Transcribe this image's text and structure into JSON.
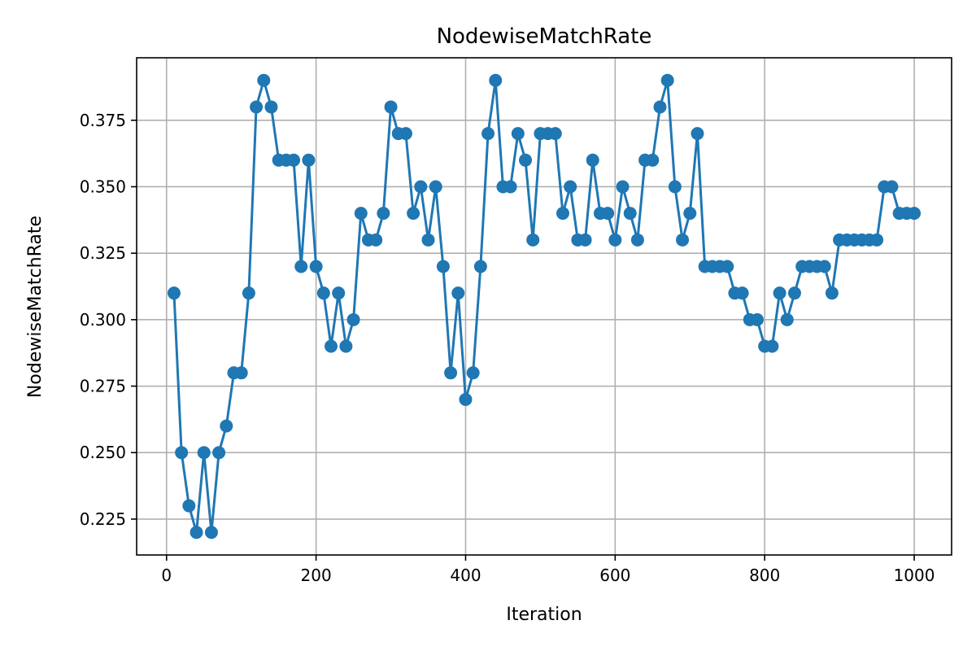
{
  "chart_data": {
    "type": "line",
    "title": "NodewiseMatchRate",
    "xlabel": "Iteration",
    "ylabel": "NodewiseMatchRate",
    "xlim": [
      -40,
      1050
    ],
    "ylim": [
      0.2115,
      0.3985
    ],
    "xticks": [
      0,
      200,
      400,
      600,
      800,
      1000
    ],
    "xtick_labels": [
      "0",
      "200",
      "400",
      "600",
      "800",
      "1000"
    ],
    "yticks": [
      0.225,
      0.25,
      0.275,
      0.3,
      0.325,
      0.35,
      0.375
    ],
    "ytick_labels": [
      "0.225",
      "0.250",
      "0.275",
      "0.300",
      "0.325",
      "0.350",
      "0.375"
    ],
    "grid": true,
    "series": [
      {
        "color": "#1f77b4",
        "marker": "circle",
        "x": [
          10,
          20,
          30,
          40,
          50,
          60,
          70,
          80,
          90,
          100,
          110,
          120,
          130,
          140,
          150,
          160,
          170,
          180,
          190,
          200,
          210,
          220,
          230,
          240,
          250,
          260,
          270,
          280,
          290,
          300,
          310,
          320,
          330,
          340,
          350,
          360,
          370,
          380,
          390,
          400,
          410,
          420,
          430,
          440,
          450,
          460,
          470,
          480,
          490,
          500,
          510,
          520,
          530,
          540,
          550,
          560,
          570,
          580,
          590,
          600,
          610,
          620,
          630,
          640,
          650,
          660,
          670,
          680,
          690,
          700,
          710,
          720,
          730,
          740,
          750,
          760,
          770,
          780,
          790,
          800,
          810,
          820,
          830,
          840,
          850,
          860,
          870,
          880,
          890,
          900,
          910,
          920,
          930,
          940,
          950,
          960,
          970,
          980,
          990,
          1000
        ],
        "y": [
          0.31,
          0.25,
          0.23,
          0.22,
          0.25,
          0.22,
          0.25,
          0.26,
          0.28,
          0.28,
          0.31,
          0.38,
          0.39,
          0.38,
          0.36,
          0.36,
          0.36,
          0.32,
          0.36,
          0.32,
          0.31,
          0.29,
          0.31,
          0.29,
          0.3,
          0.34,
          0.33,
          0.33,
          0.34,
          0.38,
          0.37,
          0.37,
          0.34,
          0.35,
          0.33,
          0.35,
          0.32,
          0.28,
          0.31,
          0.27,
          0.28,
          0.32,
          0.37,
          0.39,
          0.35,
          0.35,
          0.37,
          0.36,
          0.33,
          0.37,
          0.37,
          0.37,
          0.34,
          0.35,
          0.33,
          0.33,
          0.36,
          0.34,
          0.34,
          0.33,
          0.35,
          0.34,
          0.33,
          0.36,
          0.36,
          0.38,
          0.39,
          0.35,
          0.33,
          0.34,
          0.37,
          0.32,
          0.32,
          0.32,
          0.32,
          0.31,
          0.31,
          0.3,
          0.3,
          0.29,
          0.29,
          0.31,
          0.3,
          0.31,
          0.32,
          0.32,
          0.32,
          0.32,
          0.31,
          0.33,
          0.33,
          0.33,
          0.33,
          0.33,
          0.33,
          0.35,
          0.35,
          0.34,
          0.34,
          0.34
        ]
      }
    ]
  }
}
